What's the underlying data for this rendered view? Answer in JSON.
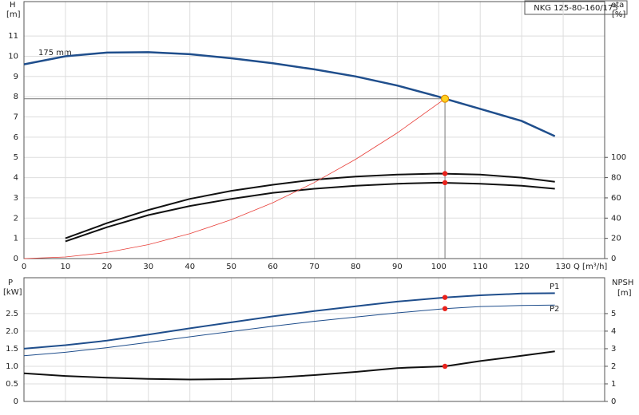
{
  "chart_data": [
    {
      "type": "line",
      "title": "NKG 125-80-160/175",
      "y_label": "H",
      "y_unit": "[m]",
      "y2_label": "eta",
      "y2_unit": "[%]",
      "x_label": "Q [m³/h]",
      "xlim": [
        0,
        140
      ],
      "xticks": [
        0,
        10,
        20,
        30,
        40,
        50,
        60,
        70,
        80,
        90,
        100,
        110,
        120,
        130
      ],
      "ylim": [
        0,
        12.7
      ],
      "yticks": [
        0,
        1,
        2,
        3,
        4,
        5,
        6,
        7,
        8,
        9,
        10,
        11
      ],
      "y2lim": [
        0,
        254
      ],
      "y2ticks": [
        0,
        20,
        40,
        60,
        80,
        100
      ],
      "grid": true,
      "series": [
        {
          "name": "175 mm",
          "color": "#1f4e8c",
          "width": 2.5,
          "x": [
            0,
            10,
            20,
            30,
            40,
            50,
            60,
            70,
            80,
            90,
            100,
            101.5,
            110,
            120,
            128
          ],
          "values": [
            9.6,
            10.0,
            10.18,
            10.2,
            10.1,
            9.9,
            9.65,
            9.35,
            9.0,
            8.55,
            8.0,
            7.9,
            7.4,
            6.8,
            6.05
          ]
        },
        {
          "color": "#111111",
          "width": 2,
          "axis": "y2",
          "x": [
            10,
            20,
            30,
            40,
            50,
            60,
            70,
            80,
            90,
            100,
            110,
            120,
            128
          ],
          "values": [
            20,
            35,
            48,
            59,
            67,
            73,
            78,
            81,
            83,
            84,
            83,
            80,
            76
          ]
        },
        {
          "color": "#111111",
          "width": 2,
          "axis": "y2",
          "x": [
            10,
            20,
            30,
            40,
            50,
            60,
            70,
            80,
            90,
            100,
            110,
            120,
            128
          ],
          "values": [
            17,
            31,
            43,
            52,
            59,
            65,
            69,
            72,
            74,
            75,
            74,
            72,
            69
          ]
        },
        {
          "color": "#e8403a",
          "width": 0.8,
          "x": [
            0,
            10,
            20,
            30,
            40,
            50,
            60,
            70,
            80,
            90,
            101.5
          ],
          "values": [
            0,
            0.08,
            0.3,
            0.69,
            1.23,
            1.92,
            2.76,
            3.76,
            4.91,
            6.21,
            7.9
          ]
        }
      ],
      "operating_point": {
        "x": 101.5,
        "y": 7.9
      },
      "points": [
        {
          "x": 101.5,
          "y": 84,
          "axis": "y2"
        },
        {
          "x": 101.5,
          "y": 75,
          "axis": "y2"
        }
      ]
    },
    {
      "type": "line",
      "y_label": "P",
      "y_unit": "[kW]",
      "y2_label": "NPSH",
      "y2_unit": "[m]",
      "xlim": [
        0,
        140
      ],
      "xticks": [
        0,
        10,
        20,
        30,
        40,
        50,
        60,
        70,
        80,
        90,
        100,
        110,
        120,
        130
      ],
      "ylim": [
        0,
        3.52
      ],
      "yticks": [
        0,
        0.5,
        {
          "value": 1,
          "label": "1.0"
        },
        1.5,
        {
          "value": 2,
          "label": "2.0"
        },
        2.5
      ],
      "y2lim": [
        0,
        7.04
      ],
      "y2ticks": [
        0,
        1,
        2,
        3,
        4,
        5
      ],
      "grid": true,
      "series": [
        {
          "name": "P1",
          "color": "#1f4e8c",
          "width": 2,
          "x": [
            0,
            10,
            20,
            30,
            40,
            50,
            60,
            70,
            80,
            90,
            101.5,
            110,
            120,
            128
          ],
          "values": [
            1.5,
            1.6,
            1.73,
            1.9,
            2.08,
            2.25,
            2.42,
            2.57,
            2.71,
            2.84,
            2.96,
            3.02,
            3.07,
            3.08
          ]
        },
        {
          "name": "P2",
          "color": "#1f4e8c",
          "width": 1,
          "x": [
            0,
            10,
            20,
            30,
            40,
            50,
            60,
            70,
            80,
            90,
            101.5,
            110,
            120,
            128
          ],
          "values": [
            1.3,
            1.4,
            1.53,
            1.68,
            1.84,
            1.99,
            2.14,
            2.28,
            2.4,
            2.52,
            2.64,
            2.7,
            2.73,
            2.74
          ]
        },
        {
          "color": "#111111",
          "width": 2,
          "axis": "y2",
          "x": [
            0,
            10,
            20,
            30,
            40,
            50,
            60,
            70,
            80,
            90,
            101.5,
            110,
            120,
            128
          ],
          "values": [
            1.6,
            1.45,
            1.35,
            1.28,
            1.25,
            1.27,
            1.35,
            1.5,
            1.68,
            1.9,
            2.0,
            2.3,
            2.6,
            2.85
          ]
        }
      ],
      "points": [
        {
          "x": 101.5,
          "y": 2.96
        },
        {
          "x": 101.5,
          "y": 2.64
        },
        {
          "x": 101.5,
          "y": 2.0,
          "axis": "y2"
        }
      ]
    }
  ]
}
